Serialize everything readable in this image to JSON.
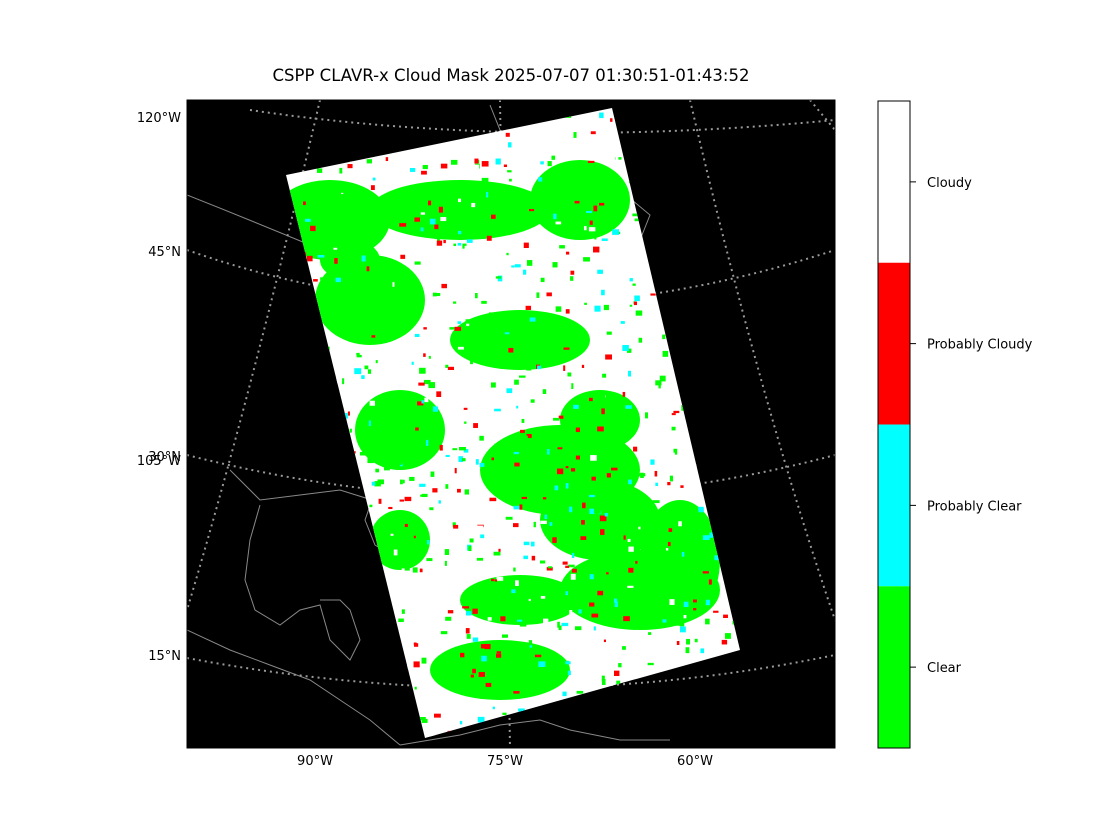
{
  "title": "CSPP CLAVR-x Cloud Mask 2025-07-07 01:30:51-01:43:52",
  "lat_axis_labels": [
    "120°W",
    "45°N",
    "30°N",
    "105°W",
    "15°N"
  ],
  "lon_axis_labels": [
    "90°W",
    "75°W",
    "60°W"
  ],
  "colorbar": [
    {
      "label": "Cloudy",
      "color": "#ffffff"
    },
    {
      "label": "Probably Cloudy",
      "color": "#ff0000"
    },
    {
      "label": "Probably Clear",
      "color": "#00ffff"
    },
    {
      "label": "Clear",
      "color": "#00ff00"
    }
  ]
}
